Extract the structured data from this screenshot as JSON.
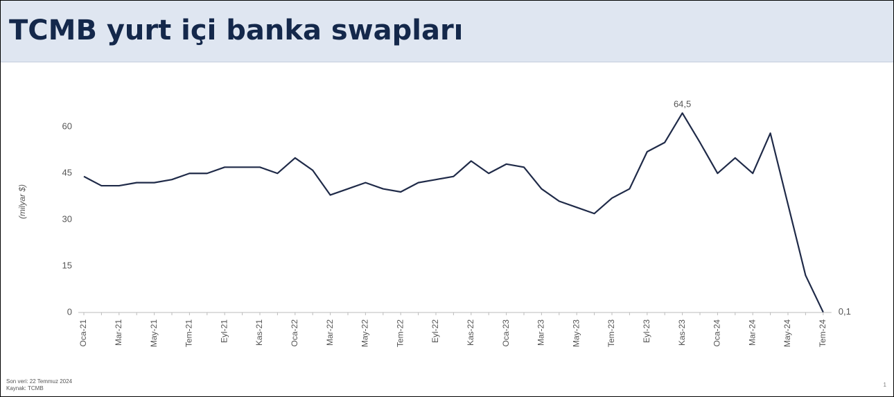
{
  "header": {
    "title": "TCMB yurt içi banka swapları"
  },
  "chart_data": {
    "type": "line",
    "y_label": "(milyar $)",
    "categories": [
      "Oca-21",
      null,
      "Mar-21",
      null,
      "May-21",
      null,
      "Tem-21",
      null,
      "Eyl-21",
      null,
      "Kas-21",
      null,
      "Oca-22",
      null,
      "Mar-22",
      null,
      "May-22",
      null,
      "Tem-22",
      null,
      "Eyl-22",
      null,
      "Kas-22",
      null,
      "Oca-23",
      null,
      "Mar-23",
      null,
      "May-23",
      null,
      "Tem-23",
      null,
      "Eyl-23",
      null,
      "Kas-23",
      null,
      "Oca-24",
      null,
      "Mar-24",
      null,
      "May-24",
      null,
      "Tem-24"
    ],
    "series": [
      {
        "color": "#1f2a48",
        "values": [
          44,
          41,
          41,
          42,
          42,
          43,
          45,
          45,
          47,
          47,
          47,
          45,
          50,
          46,
          38,
          40,
          42,
          40,
          39,
          42,
          43,
          44,
          49,
          45,
          48,
          47,
          40,
          36,
          34,
          32,
          37,
          40,
          52,
          55,
          64.5,
          55,
          45,
          50,
          45,
          58,
          35,
          12,
          0.1
        ],
        "value_labels": [
          null,
          null,
          null,
          null,
          null,
          null,
          null,
          null,
          null,
          null,
          null,
          null,
          null,
          null,
          null,
          null,
          null,
          null,
          null,
          null,
          null,
          null,
          null,
          null,
          null,
          null,
          null,
          null,
          null,
          null,
          null,
          null,
          null,
          null,
          "64,5",
          null,
          null,
          null,
          null,
          null,
          null,
          null,
          "0,1"
        ]
      }
    ],
    "ylim": [
      0,
      65
    ],
    "yticks": [
      0,
      15,
      30,
      45,
      60
    ],
    "grid": false
  },
  "footer": {
    "notes": [
      "Son veri: 22 Temmuz 2024",
      "Kaynak: TCMB"
    ],
    "page": "1"
  }
}
